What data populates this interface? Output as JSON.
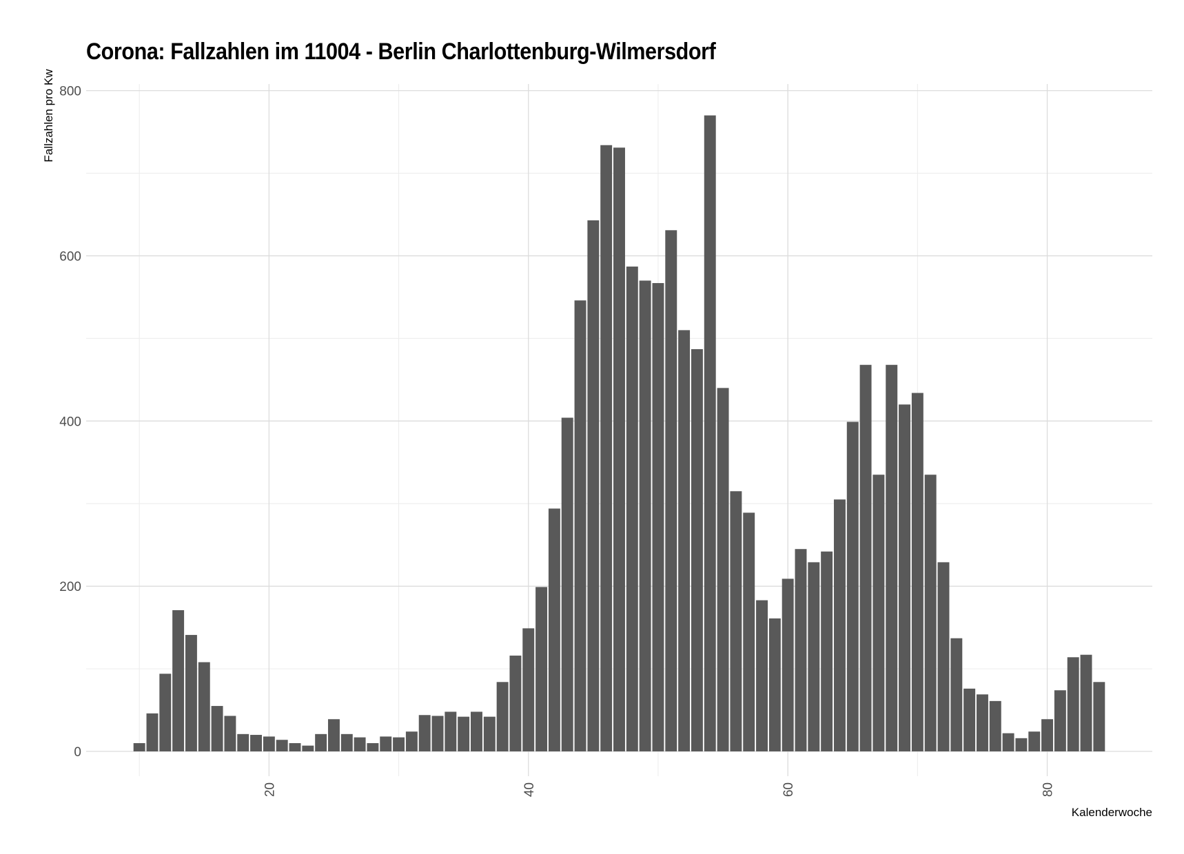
{
  "chart_data": {
    "type": "bar",
    "title": "Corona: Fallzahlen im 11004 - Berlin Charlottenburg-Wilmersdorf",
    "xlabel": "Kalenderwoche",
    "ylabel": "Fallzahlen pro Kw",
    "xlim": [
      5.9,
      88.1
    ],
    "ylim": [
      -30,
      808
    ],
    "xticks": [
      20,
      40,
      60,
      80
    ],
    "yticks": [
      0,
      200,
      400,
      600,
      800
    ],
    "grid": true,
    "legend": "none",
    "bar_color": "#595959",
    "x": [
      10,
      11,
      12,
      13,
      14,
      15,
      16,
      17,
      18,
      19,
      20,
      21,
      22,
      23,
      24,
      25,
      26,
      27,
      28,
      29,
      30,
      31,
      32,
      33,
      34,
      35,
      36,
      37,
      38,
      39,
      40,
      41,
      42,
      43,
      44,
      45,
      46,
      47,
      48,
      49,
      50,
      51,
      52,
      53,
      54,
      55,
      56,
      57,
      58,
      59,
      60,
      61,
      62,
      63,
      64,
      65,
      66,
      67,
      68,
      69,
      70,
      71,
      72,
      73,
      74,
      75,
      76,
      77,
      78,
      79,
      80,
      81,
      82,
      83,
      84
    ],
    "values": [
      10,
      46,
      94,
      171,
      141,
      108,
      55,
      43,
      21,
      20,
      18,
      14,
      10,
      7,
      21,
      39,
      21,
      17,
      10,
      18,
      17,
      24,
      44,
      43,
      48,
      42,
      48,
      42,
      84,
      116,
      149,
      199,
      294,
      404,
      546,
      643,
      734,
      731,
      587,
      570,
      567,
      631,
      510,
      487,
      770,
      440,
      315,
      289,
      183,
      161,
      209,
      245,
      229,
      242,
      305,
      399,
      468,
      335,
      468,
      420,
      434,
      335,
      229,
      137,
      76,
      69,
      61,
      22,
      16,
      24,
      39,
      74,
      114,
      117,
      84
    ]
  }
}
